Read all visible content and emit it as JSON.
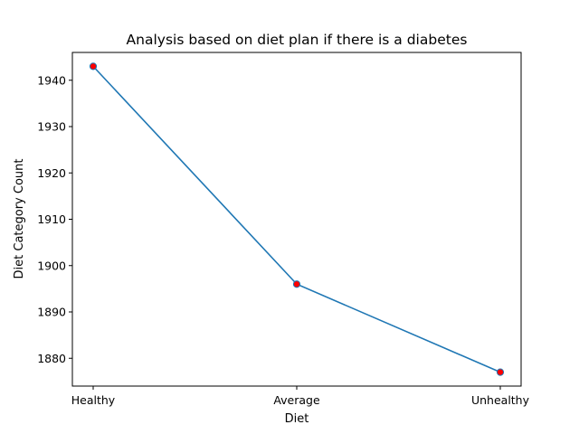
{
  "chart_data": {
    "type": "line",
    "title": "Analysis based on diet plan if there is a diabetes",
    "xlabel": "Diet",
    "ylabel": "Diet Category Count",
    "categories": [
      "Healthy",
      "Average",
      "Unhealthy"
    ],
    "series": [
      {
        "values": [
          1943,
          1896,
          1877
        ],
        "line_color": "#1f77b4",
        "marker_face_color": "#ff0000",
        "marker_edge_color": "#1f77b4"
      }
    ],
    "ylim": [
      1874,
      1946
    ],
    "yticks": [
      1880,
      1890,
      1900,
      1910,
      1920,
      1930,
      1940
    ],
    "grid": false,
    "legend": "none"
  }
}
